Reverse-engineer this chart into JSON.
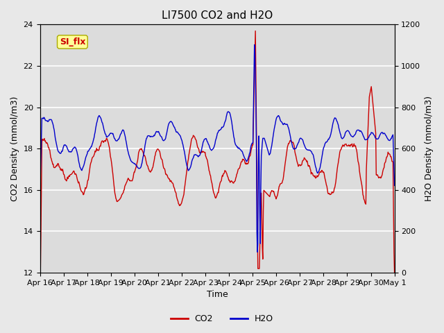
{
  "title": "LI7500 CO2 and H2O",
  "xlabel": "Time",
  "ylabel_left": "CO2 Density (mmol/m3)",
  "ylabel_right": "H2O Density (mmol/m3)",
  "ylim_left": [
    12,
    24
  ],
  "ylim_right": [
    0,
    1200
  ],
  "yticks_left": [
    12,
    14,
    16,
    18,
    20,
    22,
    24
  ],
  "yticks_right": [
    0,
    200,
    400,
    600,
    800,
    1000,
    1200
  ],
  "xtick_labels": [
    "Apr 16",
    "Apr 17",
    "Apr 18",
    "Apr 19",
    "Apr 20",
    "Apr 21",
    "Apr 22",
    "Apr 23",
    "Apr 24",
    "Apr 25",
    "Apr 26",
    "Apr 27",
    "Apr 28",
    "Apr 29",
    "Apr 30",
    "May 1"
  ],
  "co2_color": "#CC0000",
  "h2o_color": "#0000CC",
  "background_color": "#E8E8E8",
  "axes_bg_color": "#DCDCDC",
  "annotation_text": "SI_flx",
  "annotation_color": "#CC0000",
  "annotation_bg": "#FFFF99",
  "annotation_border": "#AAAA00",
  "legend_co2": "CO2",
  "legend_h2o": "H2O",
  "title_fontsize": 11,
  "axis_label_fontsize": 9,
  "tick_fontsize": 8,
  "legend_fontsize": 9,
  "line_width": 1.0,
  "n_days": 15,
  "n_points": 720
}
